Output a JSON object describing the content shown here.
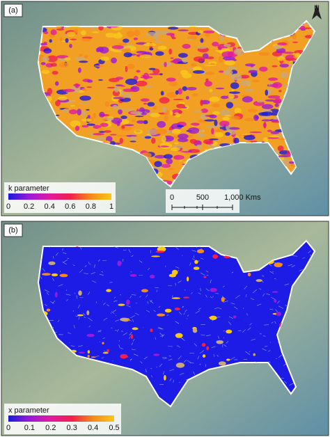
{
  "panels": [
    {
      "label": "(a)",
      "north": "N",
      "legend_title": "k parameter",
      "legend_ticks": [
        0,
        0.2,
        0.4,
        0.6,
        0.8,
        1
      ],
      "scale_bar": [
        "0",
        "500",
        "1,000 Kms"
      ]
    },
    {
      "label": "(b)",
      "legend_title": "x parameter",
      "legend_ticks": [
        0,
        0.1,
        0.2,
        0.3,
        0.4,
        0.5
      ]
    }
  ]
}
